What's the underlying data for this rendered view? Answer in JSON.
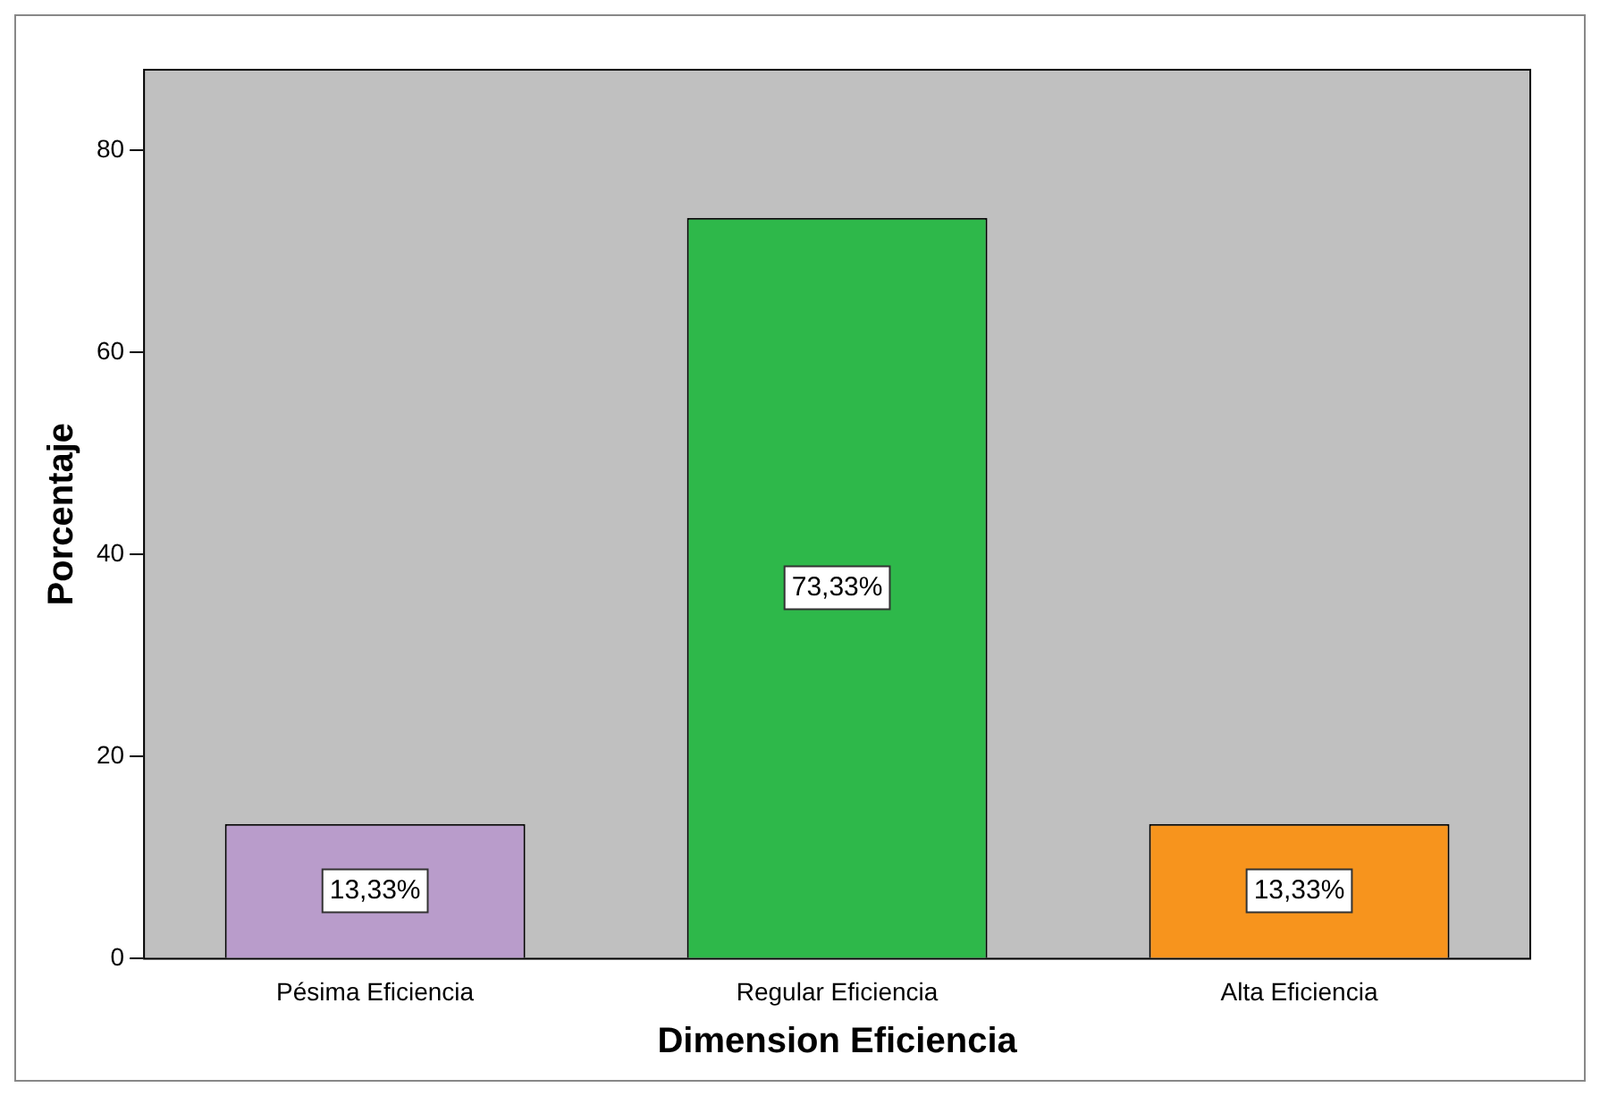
{
  "chart_data": {
    "type": "bar",
    "xlabel": "Dimension Eficiencia",
    "ylabel": "Porcentaje",
    "categories": [
      "Pésima Eficiencia",
      "Regular Eficiencia",
      "Alta Eficiencia"
    ],
    "values": [
      13.33,
      73.33,
      13.33
    ],
    "colors": [
      "#b99ccb",
      "#2eb84a",
      "#f7941d"
    ],
    "value_labels": [
      "13,33%",
      "73,33%",
      "13,33%"
    ],
    "ylim": [
      0,
      88
    ],
    "yticks": [
      0,
      20,
      40,
      60,
      80
    ],
    "grid": false,
    "legend": false
  }
}
